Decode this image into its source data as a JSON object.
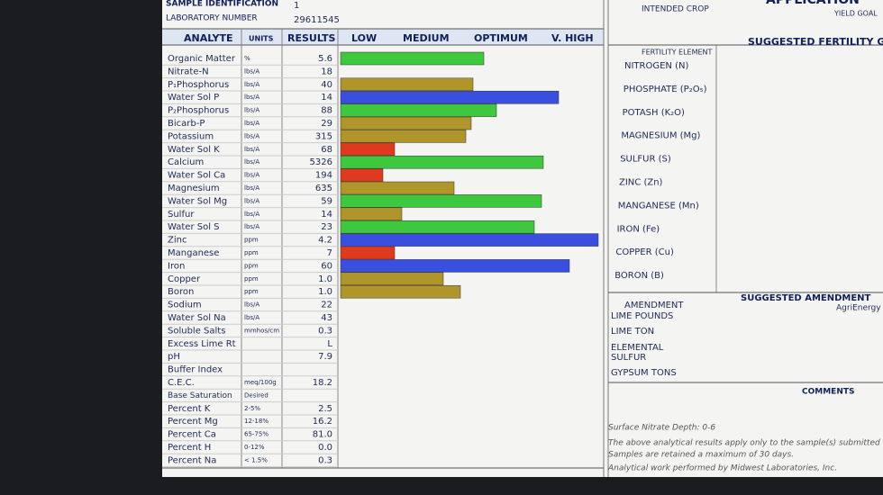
{
  "header": {
    "sample_id_label": "SAMPLE IDENTIFICATION",
    "sample_id": "1",
    "lab_number_label": "LABORATORY NUMBER",
    "lab_number": "29611545"
  },
  "table": {
    "columns": [
      "ANALYTE",
      "UNITS",
      "RESULTS",
      "LOW",
      "MEDIUM",
      "OPTIMUM",
      "V. HIGH"
    ],
    "rows": [
      [
        "Organic Matter",
        "%",
        "5.6"
      ],
      [
        "Nitrate-N",
        "lbs/A",
        "18"
      ],
      [
        "P₁Phosphorus",
        "lbs/A",
        "40"
      ],
      [
        "Water Sol P",
        "lbs/A",
        "14"
      ],
      [
        "P₂Phosphorus",
        "lbs/A",
        "88"
      ],
      [
        "Bicarb-P",
        "lbs/A",
        "29"
      ],
      [
        "Potassium",
        "lbs/A",
        "315"
      ],
      [
        "Water Sol K",
        "lbs/A",
        "68"
      ],
      [
        "Calcium",
        "lbs/A",
        "5326"
      ],
      [
        "Water Sol Ca",
        "lbs/A",
        "194"
      ],
      [
        "Magnesium",
        "lbs/A",
        "635"
      ],
      [
        "Water Sol Mg",
        "lbs/A",
        "59"
      ],
      [
        "Sulfur",
        "lbs/A",
        "14"
      ],
      [
        "Water Sol S",
        "lbs/A",
        "23"
      ],
      [
        "Zinc",
        "ppm",
        "4.2"
      ],
      [
        "Manganese",
        "ppm",
        "7"
      ],
      [
        "Iron",
        "ppm",
        "60"
      ],
      [
        "Copper",
        "ppm",
        "1.0"
      ],
      [
        "Boron",
        "ppm",
        "1.0"
      ],
      [
        "Sodium",
        "lbs/A",
        "22"
      ],
      [
        "Water Sol Na",
        "lbs/A",
        "43"
      ],
      [
        "Soluble Salts",
        "mmhos/cm",
        "0.3"
      ],
      [
        "Excess Lime Rt",
        null,
        "L"
      ],
      [
        "pH",
        null,
        "7.9"
      ],
      [
        "Buffer Index",
        null,
        null
      ],
      [
        "C.E.C.",
        "meq/100g",
        "18.2"
      ],
      [
        "Base Saturation",
        "Desired",
        null
      ],
      [
        "Percent K",
        "2-5%",
        "2.5"
      ],
      [
        "Percent Mg",
        "12-18%",
        "16.2"
      ],
      [
        "Percent Ca",
        "65-75%",
        "81.0"
      ],
      [
        "Percent H",
        "0-12%",
        "0.0"
      ],
      [
        "Percent Na",
        "< 1.5%",
        "0.3"
      ]
    ]
  },
  "right": {
    "intended_crop": "INTENDED CROP",
    "application": "APPLICATION",
    "yield_goal": "YIELD GOAL",
    "guide": "SUGGESTED FERTILITY GU",
    "fertility_element": "FERTILITY ELEMENT",
    "elements": [
      "NITROGEN (N)",
      "PHOSPHATE (P₂O₅)",
      "POTASH (K₂O)",
      "MAGNESIUM (Mg)",
      "SULFUR (S)",
      "ZINC (Zn)",
      "MANGANESE (Mn)",
      "IRON (Fe)",
      "COPPER (Cu)",
      "BORON (B)"
    ],
    "suggested_amendment": "SUGGESTED AMENDMENT",
    "amendment": "AMENDMENT",
    "brand": "AgriEnergy",
    "amendments": [
      "LIME POUNDS",
      "LIME TON",
      "ELEMENTAL",
      "SULFUR",
      "GYPSUM TONS"
    ],
    "comments": "COMMENTS"
  },
  "footer": [
    "Surface Nitrate Depth: 0-6",
    "The above analytical results apply only to the sample(s) submitted",
    "Samples are retained a maximum of 30 days.",
    "Analytical work performed by Midwest Laboratories, Inc."
  ]
}
